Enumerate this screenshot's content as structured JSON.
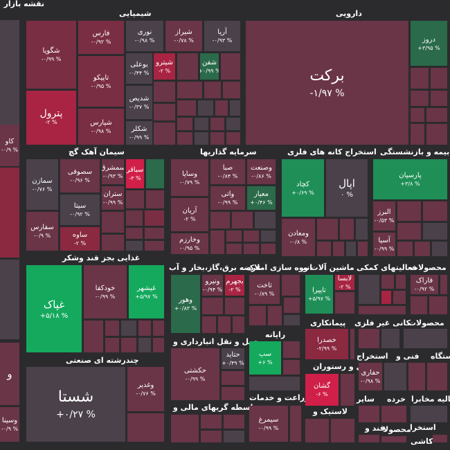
{
  "colors": {
    "background": "#2b2b2e",
    "neutral": "#4a414a",
    "red_light": "#6a3546",
    "red_mid": "#8a2940",
    "red_strong": "#d01f48",
    "green_light": "#2b6a4a",
    "green_strong": "#14a95d"
  },
  "header": {
    "title": "نقشه بازار"
  },
  "sectors": {
    "shimiaei": "شیمیایی",
    "darooei": "دارویی",
    "simani": "سیمان آهک گچ",
    "sarmaye": "سرمایه گذاریها",
    "estekhraj_felezi": "استخراج کانه های فلزی",
    "bime": "بیمه و بازنشستگی",
    "ghazaei": "غذایی بجز قند وشکر",
    "arzeh_bargh": "عرضه برق،گاز،بخار و آب",
    "anboh": "انبوه سازی املاک",
    "mashin": "ماشین آلات و",
    "faaliat_komaki": "فعالیتهای کمکی",
    "mahsoolat": "محصولات",
    "mahsoolat2": "محصولات",
    "haml": "حمل و نقل انبارداری و",
    "rayane": "رایانه",
    "peymankari": "پیمانکاری",
    "kani": "کانی غیر فلزی",
    "chandreshte": "چندرشته ای صنعتی",
    "hotel": "هتل و رستوران",
    "estekhraj2": "استخراج",
    "fani": "فنی و",
    "dastgah": "دستگاه",
    "zeraat": "زراعت و خدمات",
    "vaseteh": "واسطه گریهای مالی و",
    "lastik": "لاستیک و",
    "sayer": "سایر",
    "khorde": "خرده",
    "faalie_mokhaberat": "فعالیه مخابرا",
    "ghand": "قند و",
    "kashi": "کاشی",
    "mahsoola3": "محصولا",
    "estekhra3": "استخرا"
  },
  "tiles": {
    "barkat": {
      "sym": "برکت",
      "pct": "-۱/۹۷ %"
    },
    "droz": {
      "sym": "دروز",
      "pct": "+۳/۹۵ %"
    },
    "shegoya": {
      "sym": "شگویا",
      "pct": "-۰/۹۹ %"
    },
    "fars": {
      "sym": "فارس",
      "pct": "-۰/۹۲ %"
    },
    "noori": {
      "sym": "نوری",
      "pct": "-۰/۹۸ %"
    },
    "shiraz": {
      "sym": "شیراز",
      "pct": "-۰/۷۸ %"
    },
    "arya": {
      "sym": "آریا",
      "pct": "-۰/۹۳ %"
    },
    "booali": {
      "sym": "بوعلی",
      "pct": "-۰/۴۴ %"
    },
    "shitarou": {
      "sym": "شیترو",
      "pct": "-۲ %"
    },
    "shafan": {
      "sym": "شفن",
      "pct": "+۰/۹۹ %"
    },
    "tapiko": {
      "sym": "تاپیکو",
      "pct": "-۰/۹۵ %"
    },
    "petrol": {
      "sym": "پترول",
      "pct": "-۲ %"
    },
    "shediz": {
      "sym": "شدیص",
      "pct": "-۰/۳۷ %"
    },
    "shapars": {
      "sym": "شپارس",
      "pct": "-۰/۹۸ %"
    },
    "shekor": {
      "sym": "شکلر",
      "pct": "-۰/۹۹ %"
    },
    "kav": {
      "sym": "کاو",
      "pct": "-۰/۹ %"
    },
    "somazan": {
      "sym": "سمازن",
      "pct": "-۰/۷۶ %"
    },
    "sesofi": {
      "sym": "سصوفی",
      "pct": "-۰/۹۶ %"
    },
    "semashregh": {
      "sym": "سمشرق",
      "pct": "-۰/۹۳ %"
    },
    "sabagh": {
      "sym": "سباقر",
      "pct": "-۳ %"
    },
    "sita": {
      "sym": "سیتا",
      "pct": "-۰/۹۲ %"
    },
    "setran": {
      "sym": "ستران",
      "pct": "-۰/۹۹ %"
    },
    "sefars": {
      "sym": "سفارس",
      "pct": "-۰/۹ %"
    },
    "saveh": {
      "sym": "ساوه",
      "pct": "-۲ %"
    },
    "vesapa": {
      "sym": "وساپا",
      "pct": "-۰/۷۹ %"
    },
    "seba": {
      "sym": "صبا",
      "pct": "-۰/۸۴ %"
    },
    "vesanat": {
      "sym": "وصنعت",
      "pct": "-۰/۸۶ %"
    },
    "vati": {
      "sym": "واتی",
      "pct": "-۰/۹۹ %"
    },
    "meyar": {
      "sym": "معیار",
      "pct": "+۰/۴۶ %"
    },
    "arian": {
      "sym": "آریان",
      "pct": "-۲ %"
    },
    "vekharazm": {
      "sym": "وخارزم",
      "pct": "-۰/۹۵ %"
    },
    "kechad": {
      "sym": "کچاد",
      "pct": "+۰/۶۹ %"
    },
    "apal": {
      "sym": "اپال",
      "pct": "۰ %"
    },
    "madan": {
      "sym": "ومعادن",
      "pct": "-۰/۸ %"
    },
    "parsian": {
      "sym": "پارسیان",
      "pct": "+۳/۸ %"
    },
    "alborz": {
      "sym": "البرز",
      "pct": "-۰/۵۳ %"
    },
    "asia": {
      "sym": "آسیا",
      "pct": "-۰/۹۹ %"
    },
    "ghpak": {
      "sym": "غپاک",
      "pct": "+۵/۱۸ %"
    },
    "khodkafa": {
      "sym": "خودکفا",
      "pct": "-۰/۹۹ %"
    },
    "ghishahr": {
      "sym": "غیشهر",
      "pct": "+۵/۹۷ %"
    },
    "vahoor": {
      "sym": "وهور",
      "pct": "+۰/۸۳ %"
    },
    "vaniroo": {
      "sym": "ونیرو",
      "pct": "-۰/۹۴ %"
    },
    "bahram": {
      "sym": "بجهرم",
      "pct": "-۲ %"
    },
    "sakht": {
      "sym": "ثاخت",
      "pct": "-۰/۸۹ %"
    },
    "tapira": {
      "sym": "تاپیرا",
      "pct": "+۵/۹۷ %"
    },
    "lasa": {
      "sym": "لابسا",
      "pct": "-۲ %"
    },
    "farak": {
      "sym": "فاراک",
      "pct": "-۰/۹۲ %"
    },
    "hekashti": {
      "sym": "حکشتی",
      "pct": "-۰/۹۹ %"
    },
    "hatayd": {
      "sym": "حتاید",
      "pct": "+۰/۴۹ %"
    },
    "sap": {
      "sym": "سپ",
      "pct": "+۶ %"
    },
    "khesra": {
      "sym": "خصدرا",
      "pct": "-۲/۹۹ %"
    },
    "shasta": {
      "sym": "شستا",
      "pct": "+۰/۲۷ %"
    },
    "vaghadir": {
      "sym": "وغدیر",
      "pct": "-۰/۷۶ %"
    },
    "gashan": {
      "sym": "گشان",
      "pct": "-۶ %"
    },
    "hafari": {
      "sym": "حفاری",
      "pct": "-۰/۹۸ %"
    },
    "simorgh": {
      "sym": "سیمرغ",
      "pct": "-۰/۹۹ %"
    },
    "vosina": {
      "sym": "وسینا",
      "pct": "-۰/۹ %"
    },
    "vo": {
      "sym": "و",
      "pct": ""
    }
  }
}
